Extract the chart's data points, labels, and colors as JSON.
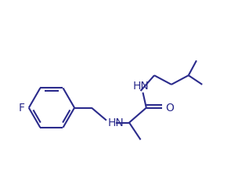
{
  "background_color": "#ffffff",
  "line_color": "#2b2b8c",
  "bond_width": 1.5,
  "font_size": 10,
  "figsize": [
    2.95,
    2.49
  ],
  "dpi": 100,
  "xlim": [
    0,
    10
  ],
  "ylim": [
    0,
    8.5
  ]
}
